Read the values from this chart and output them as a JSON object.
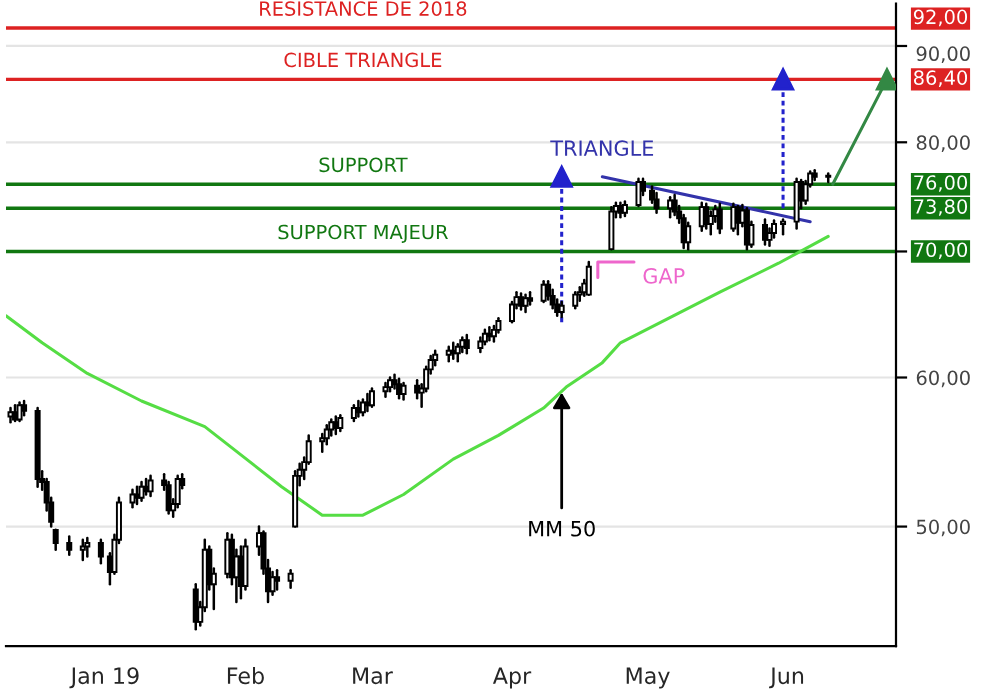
{
  "chart_data": {
    "type": "candlestick",
    "x": [
      "2018-12-11",
      "2018-12-12",
      "2018-12-13",
      "2018-12-14",
      "2018-12-17",
      "2018-12-18",
      "2018-12-19",
      "2018-12-20",
      "2018-12-21",
      "2018-12-24",
      "2018-12-27",
      "2018-12-28",
      "2018-12-31",
      "2019-01-02",
      "2019-01-03",
      "2019-01-04",
      "2019-01-07",
      "2019-01-08",
      "2019-01-09",
      "2019-01-10",
      "2019-01-11",
      "2019-01-14",
      "2019-01-15",
      "2019-01-16",
      "2019-01-17",
      "2019-01-18",
      "2019-01-21",
      "2019-01-22",
      "2019-01-23",
      "2019-01-24",
      "2019-01-25",
      "2019-01-28",
      "2019-01-29",
      "2019-01-30",
      "2019-01-31",
      "2019-02-01",
      "2019-02-04",
      "2019-02-05",
      "2019-02-06",
      "2019-02-07",
      "2019-02-08",
      "2019-02-11",
      "2019-02-12",
      "2019-02-13",
      "2019-02-14",
      "2019-02-15",
      "2019-02-18",
      "2019-02-19",
      "2019-02-20",
      "2019-02-21",
      "2019-02-22",
      "2019-02-25",
      "2019-02-26",
      "2019-02-27",
      "2019-02-28",
      "2019-03-01",
      "2019-03-04",
      "2019-03-05",
      "2019-03-06",
      "2019-03-07",
      "2019-03-08",
      "2019-03-11",
      "2019-03-12",
      "2019-03-13",
      "2019-03-14",
      "2019-03-15",
      "2019-03-18",
      "2019-03-19",
      "2019-03-20",
      "2019-03-21",
      "2019-03-22",
      "2019-03-25",
      "2019-03-26",
      "2019-03-27",
      "2019-03-28",
      "2019-03-29",
      "2019-04-01",
      "2019-04-02",
      "2019-04-03",
      "2019-04-04",
      "2019-04-05",
      "2019-04-08",
      "2019-04-09",
      "2019-04-10",
      "2019-04-11",
      "2019-04-12",
      "2019-04-15",
      "2019-04-16",
      "2019-04-17",
      "2019-04-18",
      "2019-04-23",
      "2019-04-24",
      "2019-04-25",
      "2019-04-26",
      "2019-04-29",
      "2019-04-30",
      "2019-05-02",
      "2019-05-03",
      "2019-05-06",
      "2019-05-07",
      "2019-05-08",
      "2019-05-09",
      "2019-05-10",
      "2019-05-13",
      "2019-05-14",
      "2019-05-15",
      "2019-05-16",
      "2019-05-17",
      "2019-05-20",
      "2019-05-21",
      "2019-05-22",
      "2019-05-23",
      "2019-05-24",
      "2019-05-27",
      "2019-05-28",
      "2019-05-29",
      "2019-05-31",
      "2019-06-03",
      "2019-06-04",
      "2019-06-05",
      "2019-06-06",
      "2019-06-07",
      "2019-06-10"
    ],
    "ohlc": [
      [
        57.2,
        57.8,
        56.8,
        57.5
      ],
      [
        57.5,
        58.0,
        56.9,
        57.0
      ],
      [
        57.0,
        58.2,
        56.9,
        58.0
      ],
      [
        58.0,
        58.3,
        57.3,
        57.6
      ],
      [
        57.6,
        57.8,
        52.5,
        53.0
      ],
      [
        53.0,
        53.5,
        52.3,
        52.8
      ],
      [
        52.8,
        53.0,
        51.0,
        51.5
      ],
      [
        51.5,
        51.8,
        50.0,
        50.3
      ],
      [
        49.8,
        49.8,
        48.6,
        49.0
      ],
      [
        49.0,
        49.4,
        48.3,
        48.6
      ],
      [
        48.6,
        49.2,
        48.0,
        48.8
      ],
      [
        48.8,
        49.3,
        48.2,
        49.0
      ],
      [
        49.0,
        49.2,
        47.8,
        48.2
      ],
      [
        48.2,
        48.4,
        46.6,
        47.3
      ],
      [
        47.3,
        49.5,
        47.2,
        49.2
      ],
      [
        49.2,
        51.8,
        49.0,
        51.5
      ],
      [
        51.5,
        52.3,
        51.2,
        52.0
      ],
      [
        52.0,
        52.5,
        51.4,
        51.8
      ],
      [
        51.8,
        52.8,
        51.6,
        52.5
      ],
      [
        52.5,
        53.0,
        52.0,
        52.2
      ],
      [
        52.2,
        53.2,
        51.9,
        52.9
      ],
      [
        52.9,
        53.3,
        52.3,
        52.6
      ],
      [
        52.6,
        52.8,
        50.8,
        51.0
      ],
      [
        51.0,
        51.7,
        50.6,
        51.4
      ],
      [
        51.4,
        53.2,
        51.2,
        53.0
      ],
      [
        53.0,
        53.3,
        52.4,
        52.6
      ],
      [
        46.3,
        46.6,
        44.1,
        44.5
      ],
      [
        44.5,
        45.6,
        44.3,
        45.3
      ],
      [
        45.3,
        49.2,
        45.1,
        48.6
      ],
      [
        48.6,
        48.8,
        46.3,
        46.6
      ],
      [
        46.6,
        47.5,
        45.2,
        47.2
      ],
      [
        47.2,
        49.6,
        47.0,
        49.2
      ],
      [
        49.2,
        49.5,
        46.6,
        47.0
      ],
      [
        47.0,
        48.6,
        45.6,
        48.2
      ],
      [
        48.2,
        48.8,
        45.8,
        46.5
      ],
      [
        46.5,
        49.2,
        46.3,
        48.8
      ],
      [
        48.8,
        50.0,
        48.3,
        49.6
      ],
      [
        49.6,
        49.7,
        47.2,
        47.5
      ],
      [
        47.5,
        48.0,
        45.6,
        46.2
      ],
      [
        46.2,
        47.3,
        46.0,
        47.0
      ],
      [
        47.0,
        47.4,
        46.3,
        46.8
      ],
      [
        46.8,
        47.4,
        46.4,
        47.2
      ],
      [
        50.0,
        53.5,
        50.0,
        53.2
      ],
      [
        53.2,
        54.0,
        52.6,
        53.6
      ],
      [
        53.6,
        54.4,
        53.0,
        54.1
      ],
      [
        54.1,
        55.9,
        54.0,
        55.5
      ],
      [
        55.5,
        56.0,
        54.8,
        55.7
      ],
      [
        55.7,
        56.6,
        55.3,
        56.3
      ],
      [
        56.3,
        57.0,
        55.9,
        56.8
      ],
      [
        56.8,
        57.2,
        56.0,
        56.4
      ],
      [
        56.4,
        57.3,
        56.2,
        57.1
      ],
      [
        57.1,
        58.0,
        56.9,
        57.8
      ],
      [
        57.8,
        58.3,
        57.2,
        57.5
      ],
      [
        57.5,
        58.4,
        57.3,
        58.2
      ],
      [
        58.2,
        58.8,
        57.6,
        58.0
      ],
      [
        58.0,
        59.2,
        57.9,
        59.0
      ],
      [
        59.0,
        59.6,
        58.6,
        59.3
      ],
      [
        59.3,
        60.0,
        59.0,
        59.8
      ],
      [
        59.8,
        60.2,
        59.2,
        59.5
      ],
      [
        59.5,
        59.9,
        58.5,
        58.8
      ],
      [
        58.8,
        59.6,
        58.4,
        59.4
      ],
      [
        59.4,
        59.8,
        58.5,
        58.9
      ],
      [
        58.9,
        59.5,
        57.9,
        59.2
      ],
      [
        59.2,
        60.8,
        59.0,
        60.6
      ],
      [
        60.6,
        61.6,
        60.3,
        61.3
      ],
      [
        61.3,
        62.0,
        60.9,
        61.7
      ],
      [
        61.7,
        62.3,
        61.2,
        62.0
      ],
      [
        62.0,
        62.6,
        61.4,
        61.8
      ],
      [
        61.8,
        62.5,
        61.2,
        62.3
      ],
      [
        62.3,
        63.0,
        61.9,
        62.8
      ],
      [
        62.8,
        63.2,
        61.8,
        62.2
      ],
      [
        62.2,
        63.0,
        61.9,
        62.7
      ],
      [
        62.7,
        63.6,
        62.5,
        63.3
      ],
      [
        63.3,
        63.8,
        62.8,
        63.1
      ],
      [
        63.1,
        63.9,
        62.7,
        63.6
      ],
      [
        63.6,
        64.5,
        63.4,
        64.3
      ],
      [
        64.3,
        65.8,
        64.2,
        65.6
      ],
      [
        65.6,
        66.6,
        65.3,
        66.2
      ],
      [
        66.2,
        66.5,
        65.2,
        65.5
      ],
      [
        65.5,
        66.4,
        65.0,
        66.1
      ],
      [
        66.1,
        66.6,
        65.6,
        65.9
      ],
      [
        65.9,
        67.5,
        65.8,
        67.2
      ],
      [
        67.2,
        67.5,
        66.0,
        66.3
      ],
      [
        66.3,
        66.8,
        65.3,
        65.6
      ],
      [
        65.6,
        66.0,
        64.7,
        65.0
      ],
      [
        65.0,
        65.8,
        64.6,
        65.5
      ],
      [
        65.5,
        66.6,
        65.3,
        66.4
      ],
      [
        66.4,
        67.0,
        65.9,
        66.6
      ],
      [
        66.6,
        67.6,
        66.3,
        67.3
      ],
      [
        66.4,
        69.1,
        66.4,
        68.7
      ],
      [
        70.2,
        73.9,
        70.2,
        73.5
      ],
      [
        73.5,
        74.3,
        73.0,
        74.0
      ],
      [
        74.0,
        74.3,
        73.0,
        73.4
      ],
      [
        73.4,
        74.4,
        73.1,
        74.1
      ],
      [
        74.1,
        76.5,
        74.0,
        76.2
      ],
      [
        76.2,
        76.5,
        75.0,
        75.4
      ],
      [
        75.4,
        75.8,
        74.3,
        74.6
      ],
      [
        74.6,
        75.2,
        73.4,
        73.8
      ],
      [
        73.8,
        74.8,
        73.0,
        74.5
      ],
      [
        74.5,
        75.0,
        73.2,
        73.5
      ],
      [
        73.5,
        74.0,
        72.5,
        72.9
      ],
      [
        72.9,
        73.2,
        70.3,
        70.8
      ],
      [
        70.8,
        72.5,
        70.2,
        72.2
      ],
      [
        72.2,
        74.3,
        71.8,
        73.9
      ],
      [
        73.9,
        74.2,
        72.0,
        72.4
      ],
      [
        72.4,
        73.5,
        71.5,
        73.1
      ],
      [
        73.1,
        74.0,
        72.6,
        73.7
      ],
      [
        73.7,
        74.2,
        71.6,
        72.0
      ],
      [
        72.0,
        74.2,
        71.8,
        73.9
      ],
      [
        73.9,
        74.0,
        71.5,
        72.5
      ],
      [
        72.5,
        74.1,
        72.2,
        73.6
      ],
      [
        73.6,
        73.8,
        70.2,
        70.6
      ],
      [
        70.6,
        72.6,
        70.4,
        72.3
      ],
      [
        72.3,
        72.8,
        70.6,
        71.0
      ],
      [
        71.0,
        72.0,
        70.5,
        71.6
      ],
      [
        71.6,
        72.7,
        71.2,
        72.4
      ],
      [
        72.4,
        72.8,
        71.5,
        72.6
      ],
      [
        72.6,
        76.5,
        72.0,
        76.2
      ],
      [
        76.2,
        76.4,
        73.8,
        74.5
      ],
      [
        74.5,
        76.3,
        74.2,
        76.0
      ],
      [
        76.0,
        77.2,
        75.8,
        77.0
      ],
      [
        77.0,
        77.3,
        76.4,
        76.7
      ],
      [
        76.7,
        77.0,
        76.2,
        76.8
      ]
    ],
    "series": [
      {
        "type": "line",
        "color": "#55dd44",
        "x": [
          "2018-12-10",
          "2018-12-18",
          "2018-12-28",
          "2019-01-09",
          "2019-01-23",
          "2019-02-09",
          "2019-02-18",
          "2019-02-27",
          "2019-03-08",
          "2019-03-19",
          "2019-03-29",
          "2019-04-08",
          "2019-04-13",
          "2019-04-21",
          "2019-04-25",
          "2019-05-04",
          "2019-05-17",
          "2019-05-30",
          "2019-06-10"
        ],
        "values": [
          64.7,
          62.6,
          60.3,
          58.3,
          56.5,
          52.5,
          50.7,
          50.7,
          52.0,
          54.3,
          55.9,
          57.8,
          59.3,
          61.1,
          62.6,
          64.2,
          66.6,
          69.0,
          71.3
        ]
      },
      {
        "type": "line",
        "name": "TRIANGLE",
        "color": "#3333aa",
        "x": [
          "2019-04-21",
          "2019-06-06"
        ],
        "values": [
          76.7,
          72.6
        ]
      },
      {
        "type": "line",
        "name": "GAP",
        "color": "#ee66cc",
        "x": [
          "2019-04-20",
          "2019-04-20",
          "2019-04-28"
        ],
        "values": [
          67.8,
          69.1,
          69.1
        ]
      },
      {
        "type": "line",
        "color": "#2222cc",
        "line_style": "dotted",
        "marker": "triangle",
        "x": [
          "2019-04-12",
          "2019-04-12"
        ],
        "values": [
          64.2,
          76.7
        ]
      },
      {
        "type": "line",
        "color": "#2222cc",
        "line_style": "dotted",
        "marker": "triangle",
        "x": [
          "2019-05-31",
          "2019-05-31"
        ],
        "values": [
          73.8,
          86.4
        ]
      },
      {
        "type": "line",
        "color": "#338844",
        "marker": "triangle",
        "x": [
          "2019-06-11",
          "2019-06-23"
        ],
        "values": [
          76.0,
          86.4
        ]
      }
    ],
    "ref_lines": [
      {
        "axis": "y",
        "value": 92,
        "label": "92,00",
        "color": "#dd2222"
      },
      {
        "axis": "y",
        "value": 86.4,
        "label": "86,40",
        "color": "#dd2222"
      },
      {
        "axis": "y",
        "value": 76,
        "label": "76,00",
        "color": "#117711"
      },
      {
        "axis": "y",
        "value": 73.8,
        "label": "73,80",
        "color": "#117711"
      },
      {
        "axis": "y",
        "value": 70,
        "label": "70,00",
        "color": "#117711"
      }
    ],
    "annotations": [
      {
        "text": "RESISTANCE DE 2018",
        "x": "2019-02-27",
        "y": 92
      },
      {
        "text": "CIBLE TRIANGLE",
        "x": "2019-02-27",
        "y": 86.4
      },
      {
        "text": "SUPPORT",
        "x": "2019-02-27",
        "y": 76
      },
      {
        "text": "SUPPORT MAJEUR",
        "x": "2019-02-27",
        "y": 70
      },
      {
        "text": "MM 50",
        "x": "2019-04-12",
        "y": 59.3
      }
    ],
    "log": true,
    "xlim": [
      "2018-12-10",
      "2019-06-25"
    ],
    "xticks": [
      {
        "value": "2019-01-01",
        "label": "Jan 19"
      },
      {
        "value": "2019-02-01",
        "label": "Feb"
      },
      {
        "value": "2019-03-01",
        "label": "Mar"
      },
      {
        "value": "2019-04-01",
        "label": "Apr"
      },
      {
        "value": "2019-05-01",
        "label": "May"
      },
      {
        "value": "2019-06-01",
        "label": "Jun"
      }
    ],
    "ylim": [
      43.2,
      94.8
    ],
    "yticks": [
      {
        "value": 50,
        "label": "50,00"
      },
      {
        "value": 60,
        "label": "60,00"
      },
      {
        "value": 70,
        "label": null
      },
      {
        "value": 80,
        "label": "80,00"
      },
      {
        "value": 90,
        "label": "90,00"
      }
    ],
    "grid": "y"
  }
}
